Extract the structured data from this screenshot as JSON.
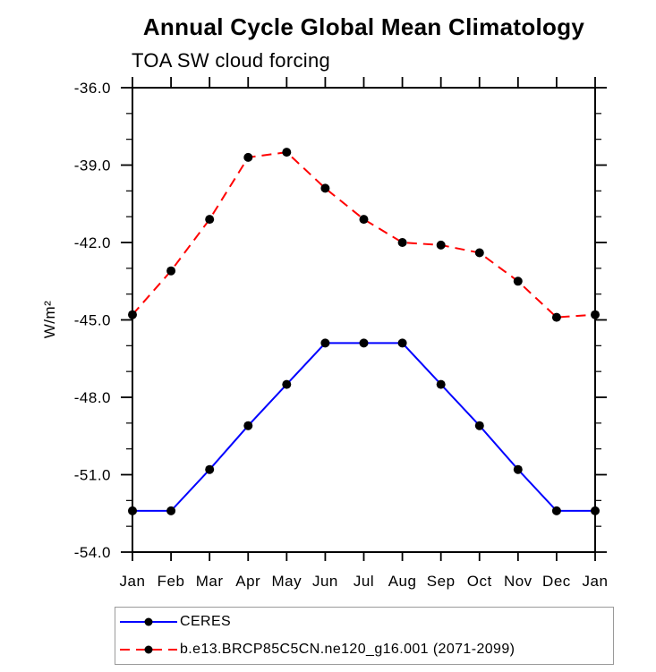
{
  "header": {
    "title": "Annual Cycle Global Mean Climatology",
    "subtitle": "TOA SW cloud forcing"
  },
  "chart_data": {
    "type": "line",
    "title": "Annual Cycle Global Mean Climatology",
    "subtitle": "TOA SW cloud forcing",
    "xlabel": "",
    "ylabel": "W/m²",
    "x_categories": [
      "Jan",
      "Feb",
      "Mar",
      "Apr",
      "May",
      "Jun",
      "Jul",
      "Aug",
      "Sep",
      "Oct",
      "Nov",
      "Dec",
      "Jan"
    ],
    "ylim": [
      -54.0,
      -36.0
    ],
    "y_major_ticks": [
      -36,
      -39,
      -42,
      -45,
      -48,
      -51,
      -54
    ],
    "y_major_tick_labels": [
      "-36.0",
      "-39.0",
      "-42.0",
      "-45.0",
      "-48.0",
      "-51.0",
      "-54.0"
    ],
    "y_minor_step": 1,
    "grid": false,
    "legend_position": "bottom-left",
    "series": [
      {
        "id": "ceres",
        "name": "CERES",
        "color": "#0000ff",
        "line_style": "solid",
        "marker": "circle",
        "marker_color": "#000000",
        "values": [
          -52.4,
          -52.4,
          -50.8,
          -49.1,
          -47.5,
          -45.9,
          -45.9,
          -45.9,
          -47.5,
          -49.1,
          -50.8,
          -52.4,
          -52.4
        ]
      },
      {
        "id": "model",
        "name": "b.e13.BRCP85C5CN.ne120_g16.001 (2071-2099)",
        "color": "#ff0000",
        "line_style": "dashed",
        "marker": "circle",
        "marker_color": "#000000",
        "values": [
          -44.8,
          -43.1,
          -41.1,
          -38.7,
          -38.5,
          -39.9,
          -41.1,
          -42.0,
          -42.1,
          -42.4,
          -43.5,
          -44.9,
          -44.8
        ]
      }
    ]
  },
  "legend": {
    "entries": [
      {
        "label": "CERES",
        "color": "#0000ff",
        "dash": "none"
      },
      {
        "label": "b.e13.BRCP85C5CN.ne120_g16.001 (2071-2099)",
        "color": "#ff0000",
        "dash": "11,7"
      }
    ]
  }
}
